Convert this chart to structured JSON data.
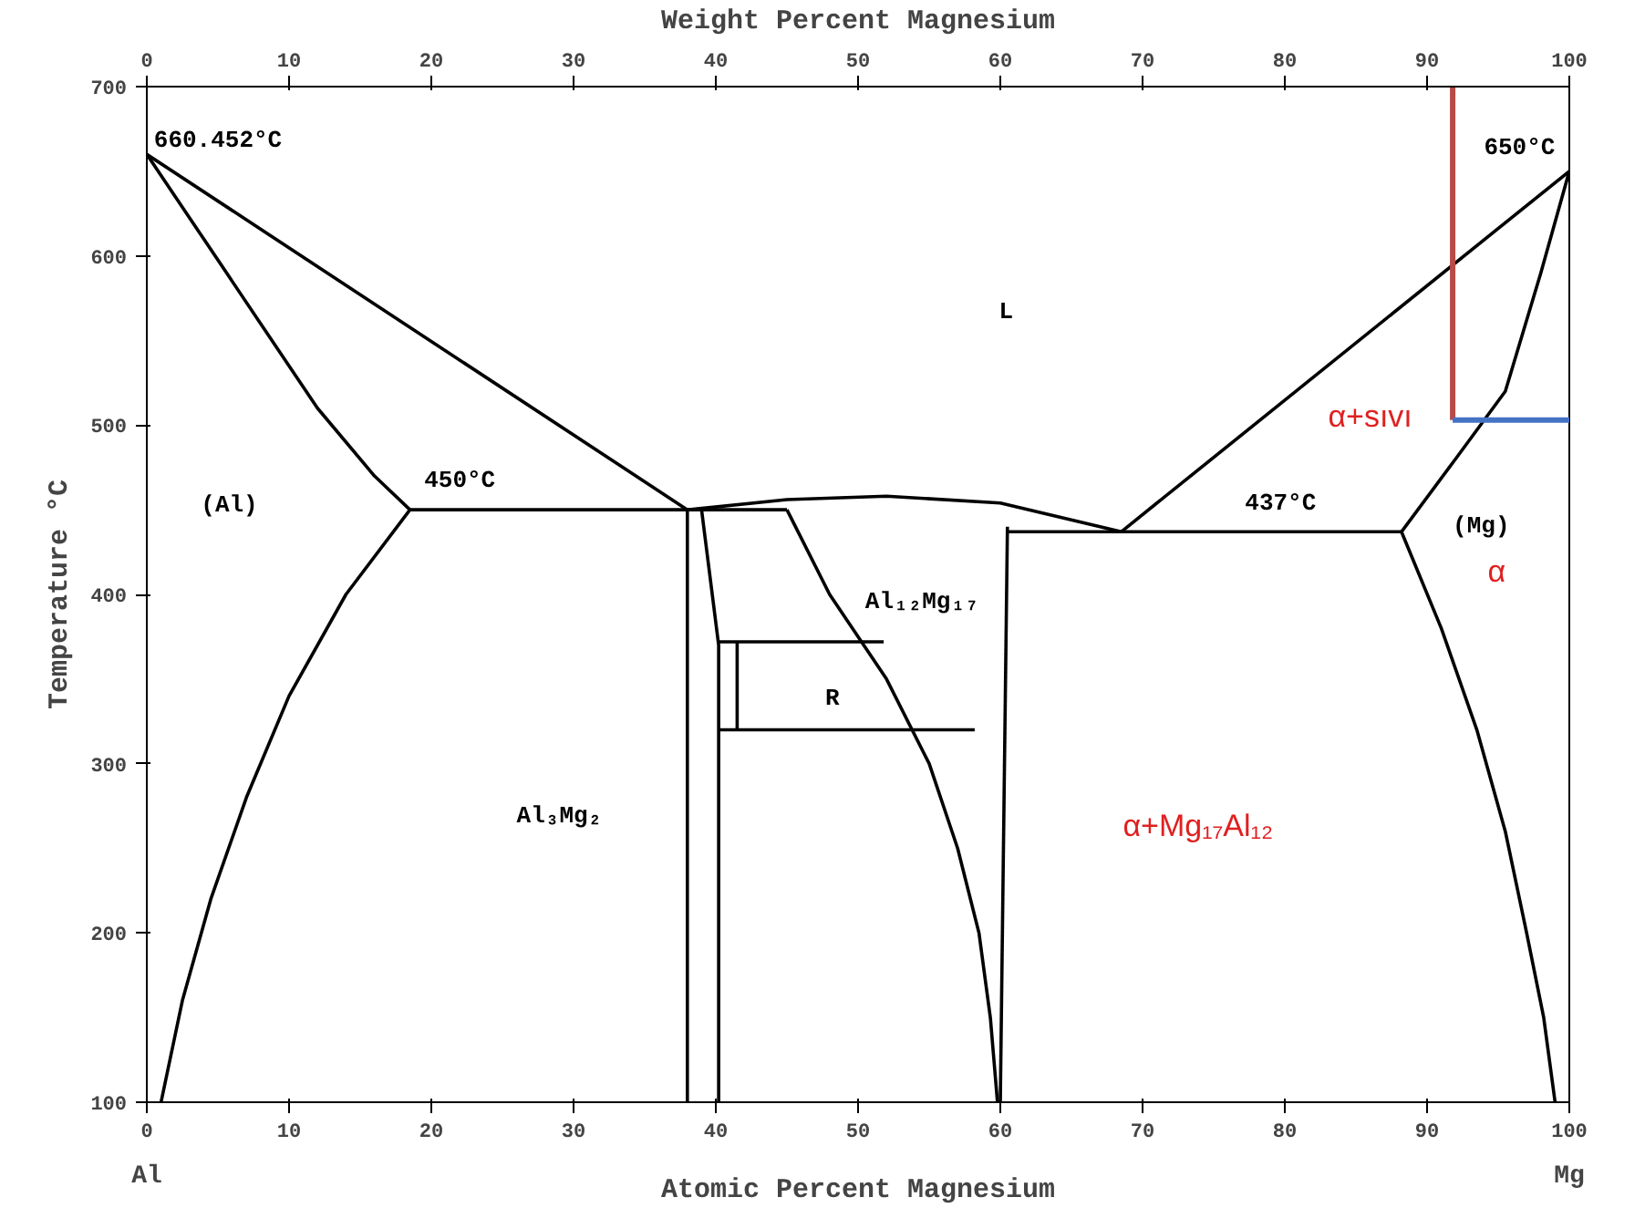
{
  "chart_data": {
    "type": "line",
    "xlabel": "Atomic Percent Magnesium",
    "x2label": "Weight Percent Magnesium",
    "ylabel": "Temperature °C",
    "xlim": [
      0,
      100
    ],
    "ylim": [
      100,
      700
    ],
    "xticks": [
      0,
      10,
      20,
      30,
      40,
      50,
      60,
      70,
      80,
      90,
      100
    ],
    "yticks": [
      100,
      200,
      300,
      400,
      500,
      600,
      700
    ],
    "x2lim": [
      0,
      100
    ],
    "x2ticks": [
      0,
      10,
      20,
      30,
      40,
      50,
      60,
      70,
      80,
      90,
      100
    ],
    "series": [
      {
        "color": "#000000",
        "x": [
          0,
          38
        ],
        "values": [
          660,
          450
        ]
      },
      {
        "color": "#000000",
        "x": [
          0,
          4,
          8,
          12,
          16,
          18.5
        ],
        "values": [
          660,
          610,
          560,
          510,
          470,
          450
        ]
      },
      {
        "color": "#000000",
        "x": [
          18.5,
          14,
          10,
          7,
          4.5,
          2.5,
          1
        ],
        "values": [
          450,
          400,
          340,
          280,
          220,
          160,
          100
        ]
      },
      {
        "color": "#000000",
        "x": [
          18.5,
          45
        ],
        "values": [
          450,
          450
        ]
      },
      {
        "color": "#000000",
        "x": [
          38,
          38
        ],
        "values": [
          450,
          100
        ]
      },
      {
        "color": "#000000",
        "x": [
          39,
          40.2,
          40.2
        ],
        "values": [
          450,
          370,
          100
        ]
      },
      {
        "color": "#000000",
        "x": [
          40.2,
          51.8
        ],
        "values": [
          372,
          372
        ]
      },
      {
        "color": "#000000",
        "x": [
          40.2,
          58.2
        ],
        "values": [
          320,
          320
        ]
      },
      {
        "color": "#000000",
        "x": [
          41.5,
          41.5
        ],
        "values": [
          372,
          320
        ]
      },
      {
        "color": "#000000",
        "x": [
          45,
          48,
          52,
          55,
          57,
          58.5,
          59.3,
          59.8
        ],
        "values": [
          450,
          400,
          350,
          300,
          250,
          200,
          150,
          100
        ]
      },
      {
        "color": "#000000",
        "x": [
          60.5,
          60
        ],
        "values": [
          440,
          100
        ]
      },
      {
        "color": "#000000",
        "x": [
          38,
          45,
          52,
          60,
          68.5
        ],
        "values": [
          450,
          456,
          458,
          454,
          437
        ]
      },
      {
        "color": "#000000",
        "x": [
          60.5,
          88.2
        ],
        "values": [
          437,
          437
        ]
      },
      {
        "color": "#000000",
        "x": [
          68.5,
          100
        ],
        "values": [
          437,
          650
        ]
      },
      {
        "color": "#000000",
        "x": [
          88.2,
          92,
          95.5,
          98,
          100
        ],
        "values": [
          437,
          480,
          520,
          590,
          650
        ]
      },
      {
        "color": "#000000",
        "x": [
          88.2,
          91,
          93.5,
          95.5,
          97,
          98.2,
          99
        ],
        "values": [
          437,
          380,
          320,
          260,
          200,
          150,
          100
        ]
      },
      {
        "color": "#b94a48",
        "x": [
          91.8,
          91.8
        ],
        "values": [
          700,
          503
        ]
      },
      {
        "color": "#4472c4",
        "x": [
          91.8,
          100
        ],
        "values": [
          503,
          503
        ]
      }
    ],
    "annotations": [
      "660.452°C",
      "650°C",
      "L",
      "450°C",
      "437°C",
      "(Al)",
      "(Mg)",
      "α",
      "α+sıvı",
      "Al₁₂Mg₁₇",
      "R",
      "Al₃Mg₂",
      "α+Mg₁₇Al₁₂",
      "Al",
      "Mg"
    ]
  }
}
